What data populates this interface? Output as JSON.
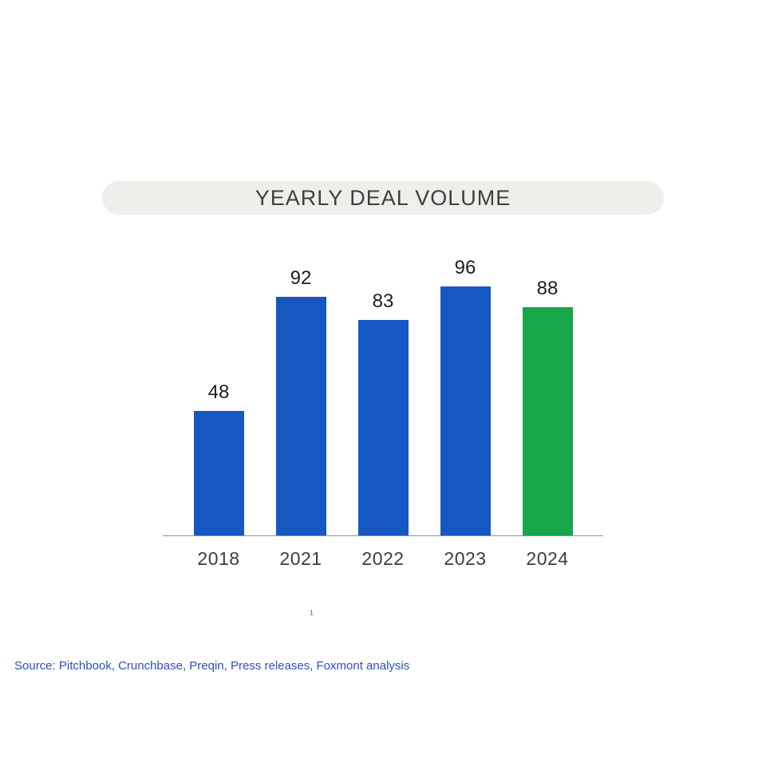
{
  "title": "YEARLY DEAL VOLUME",
  "footnote": "1",
  "source": "Source: Pitchbook, Crunchbase, Preqin, Press releases, Foxmont analysis",
  "colors": {
    "bar_blue": "#1757c2",
    "bar_green": "#17a64a",
    "pill_background": "#f0eeea",
    "source_text": "#2d4fc0"
  },
  "chart_data": {
    "type": "bar",
    "title": "YEARLY DEAL VOLUME",
    "categories": [
      "2018",
      "2021",
      "2022",
      "2023",
      "2024"
    ],
    "values": [
      48,
      92,
      83,
      96,
      88
    ],
    "bar_colors": [
      "#1757c2",
      "#1757c2",
      "#1757c2",
      "#1757c2",
      "#17a64a"
    ],
    "xlabel": "",
    "ylabel": "",
    "ylim": [
      0,
      100
    ],
    "grid": false,
    "legend": "none",
    "data_labels": true
  }
}
